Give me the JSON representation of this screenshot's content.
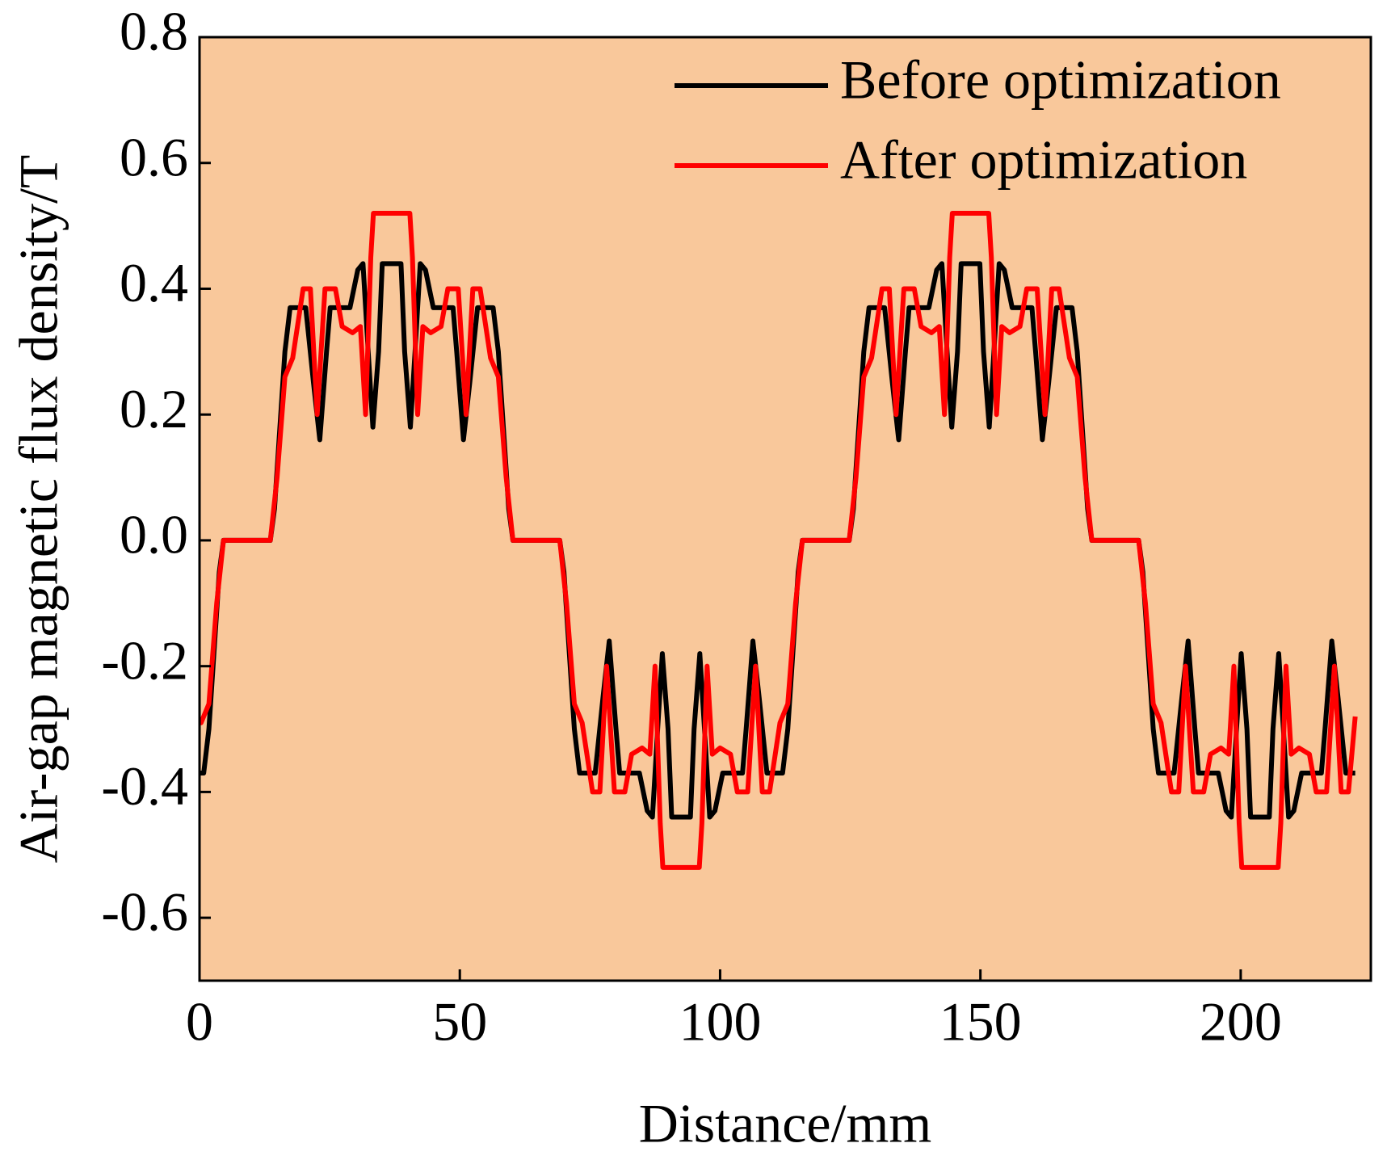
{
  "chart_data": {
    "type": "line",
    "x_label": "Distance/mm",
    "y_label": "Air-gap magnetic flux density/T",
    "xlim": [
      0,
      225
    ],
    "ylim": [
      -0.7,
      0.8
    ],
    "xticks": [
      0,
      50,
      100,
      150,
      200
    ],
    "yticks": [
      -0.6,
      -0.4,
      -0.2,
      {
        "value": 0,
        "label": "0.0"
      },
      0.2,
      0.4,
      0.6,
      0.8
    ],
    "background": "#f9c89b",
    "legend": "upper right",
    "series": [
      {
        "name": "Before optimization",
        "color": "#000000",
        "x": [
          0,
          0.8,
          1.8,
          3.8,
          4.6,
          13.6,
          14.4,
          16.4,
          17.4,
          20.4,
          21.9,
          23.1,
          24.4,
          25.1,
          28.9,
          30.4,
          31.4,
          32.4,
          33.3,
          34.4,
          35.1,
          38.7,
          39.4,
          40.5,
          41.4,
          42.4,
          43.4,
          44.9,
          48.7,
          49.4,
          50.7,
          51.9,
          53.4,
          56.4,
          57.4,
          59.4,
          60.2,
          69.2,
          70,
          72,
          73,
          76,
          77.5,
          78.7,
          80,
          80.7,
          84.5,
          86,
          87,
          88,
          88.9,
          90,
          90.7,
          94.3,
          95,
          96.1,
          97,
          98,
          99,
          100.5,
          104.3,
          105,
          106.3,
          107.5,
          109,
          112,
          113,
          115,
          115.8,
          124.8,
          125.6,
          127.6,
          128.6,
          131.6,
          133.1,
          134.3,
          135.6,
          136.3,
          140.1,
          141.6,
          142.6,
          143.6,
          144.5,
          145.6,
          146.3,
          149.9,
          150.6,
          151.7,
          152.6,
          153.6,
          154.6,
          156.1,
          159.9,
          160.6,
          161.9,
          163.1,
          164.6,
          167.6,
          168.6,
          170.6,
          171.4,
          180.4,
          181.2,
          183.2,
          184.2,
          187.2,
          188.7,
          189.9,
          191.2,
          191.9,
          195.7,
          197.2,
          198.2,
          199.2,
          200.1,
          201.2,
          201.9,
          205.5,
          206.2,
          207.3,
          208.2,
          209.2,
          210.2,
          211.7,
          215.5,
          216.2,
          217.5,
          218.7,
          220.2,
          222
        ],
        "values": [
          -0.37,
          -0.37,
          -0.3,
          -0.05,
          0,
          0,
          0.05,
          0.3,
          0.37,
          0.37,
          0.25,
          0.16,
          0.3,
          0.37,
          0.37,
          0.43,
          0.44,
          0.3,
          0.18,
          0.3,
          0.44,
          0.44,
          0.3,
          0.18,
          0.3,
          0.44,
          0.43,
          0.37,
          0.37,
          0.3,
          0.16,
          0.25,
          0.37,
          0.37,
          0.3,
          0.05,
          0,
          0,
          -0.05,
          -0.3,
          -0.37,
          -0.37,
          -0.25,
          -0.16,
          -0.3,
          -0.37,
          -0.37,
          -0.43,
          -0.44,
          -0.3,
          -0.18,
          -0.3,
          -0.44,
          -0.44,
          -0.3,
          -0.18,
          -0.3,
          -0.44,
          -0.43,
          -0.37,
          -0.37,
          -0.3,
          -0.16,
          -0.25,
          -0.37,
          -0.37,
          -0.3,
          -0.05,
          0,
          0,
          0.05,
          0.3,
          0.37,
          0.37,
          0.25,
          0.16,
          0.3,
          0.37,
          0.37,
          0.43,
          0.44,
          0.3,
          0.18,
          0.3,
          0.44,
          0.44,
          0.3,
          0.18,
          0.3,
          0.44,
          0.43,
          0.37,
          0.37,
          0.3,
          0.16,
          0.25,
          0.37,
          0.37,
          0.3,
          0.05,
          0,
          0,
          -0.05,
          -0.3,
          -0.37,
          -0.37,
          -0.25,
          -0.16,
          -0.3,
          -0.37,
          -0.37,
          -0.43,
          -0.44,
          -0.3,
          -0.18,
          -0.3,
          -0.44,
          -0.44,
          -0.3,
          -0.18,
          -0.3,
          -0.44,
          -0.43,
          -0.37,
          -0.37,
          -0.3,
          -0.16,
          -0.25,
          -0.37,
          -0.37
        ]
      },
      {
        "name": "After optimization",
        "color": "#ff0000",
        "x": [
          0,
          0.3,
          1.8,
          3.3,
          4.6,
          13.6,
          14.9,
          16.4,
          17.9,
          19.9,
          21.3,
          22.6,
          24.1,
          26.1,
          27.4,
          29.4,
          30.9,
          31.9,
          32.9,
          33.4,
          40.4,
          40.9,
          41.9,
          42.9,
          44.4,
          46.4,
          47.7,
          49.7,
          51.2,
          52.5,
          53.9,
          55.9,
          57.4,
          58.9,
          60.2,
          69.2,
          70.5,
          72,
          73.5,
          75.5,
          76.9,
          78.2,
          79.7,
          81.7,
          83,
          85,
          86.5,
          87.5,
          88.5,
          89,
          96,
          96.5,
          97.5,
          98.5,
          100,
          102,
          103.3,
          105.3,
          106.8,
          108.1,
          109.5,
          111.5,
          113,
          114.5,
          115.8,
          124.8,
          126.1,
          127.6,
          129.1,
          131.1,
          132.5,
          133.8,
          135.3,
          137.3,
          138.6,
          140.6,
          142.1,
          143.1,
          144.1,
          144.6,
          151.6,
          152.1,
          153.1,
          154.1,
          155.6,
          157.6,
          158.9,
          160.9,
          162.4,
          163.7,
          165.1,
          167.1,
          168.6,
          170.1,
          171.4,
          180.4,
          181.7,
          183.2,
          184.7,
          186.7,
          188.1,
          189.4,
          190.9,
          192.9,
          194.2,
          196.2,
          197.7,
          198.7,
          199.7,
          200.2,
          207.2,
          207.7,
          208.7,
          209.7,
          211.2,
          213.2,
          214.5,
          216.5,
          218,
          219.3,
          220.7,
          222
        ],
        "values": [
          -0.29,
          -0.29,
          -0.26,
          -0.1,
          0,
          0,
          0.1,
          0.26,
          0.29,
          0.4,
          0.4,
          0.2,
          0.4,
          0.4,
          0.34,
          0.33,
          0.34,
          0.2,
          0.45,
          0.52,
          0.52,
          0.45,
          0.2,
          0.34,
          0.33,
          0.34,
          0.4,
          0.4,
          0.2,
          0.4,
          0.4,
          0.29,
          0.26,
          0.1,
          0,
          0,
          -0.1,
          -0.26,
          -0.29,
          -0.4,
          -0.4,
          -0.2,
          -0.4,
          -0.4,
          -0.34,
          -0.33,
          -0.34,
          -0.2,
          -0.45,
          -0.52,
          -0.52,
          -0.45,
          -0.2,
          -0.34,
          -0.33,
          -0.34,
          -0.4,
          -0.4,
          -0.2,
          -0.4,
          -0.4,
          -0.29,
          -0.26,
          -0.1,
          0,
          0,
          0.1,
          0.26,
          0.29,
          0.4,
          0.4,
          0.2,
          0.4,
          0.4,
          0.34,
          0.33,
          0.34,
          0.2,
          0.45,
          0.52,
          0.52,
          0.45,
          0.2,
          0.34,
          0.33,
          0.34,
          0.4,
          0.4,
          0.2,
          0.4,
          0.4,
          0.29,
          0.26,
          0.1,
          0,
          0,
          -0.1,
          -0.26,
          -0.29,
          -0.4,
          -0.4,
          -0.2,
          -0.4,
          -0.4,
          -0.34,
          -0.33,
          -0.34,
          -0.2,
          -0.45,
          -0.52,
          -0.52,
          -0.45,
          -0.2,
          -0.34,
          -0.33,
          -0.34,
          -0.4,
          -0.4,
          -0.2,
          -0.4,
          -0.4,
          -0.28
        ]
      }
    ]
  }
}
